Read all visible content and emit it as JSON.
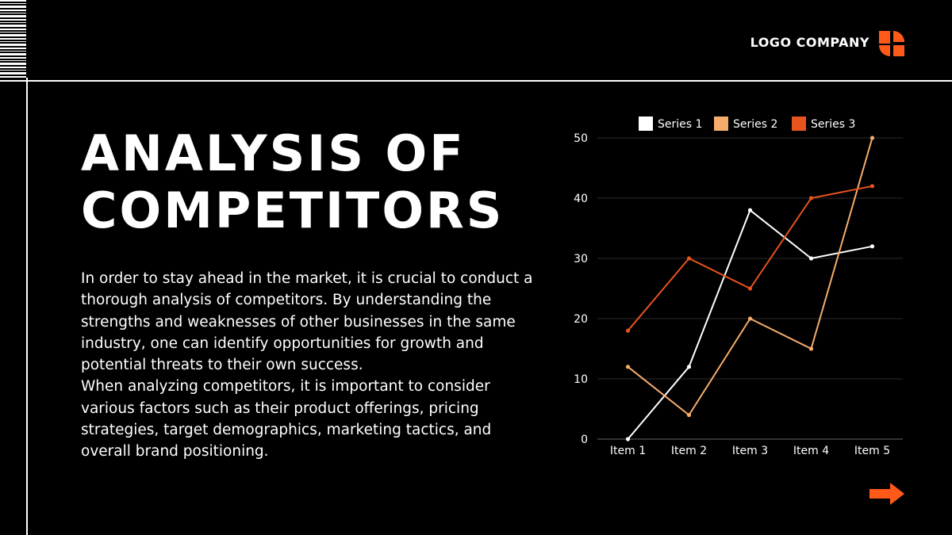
{
  "header": {
    "logo_text": "LOGO COMPANY",
    "logo_icon": "logo-mark-icon"
  },
  "slide": {
    "title_line1": "ANALYSIS OF",
    "title_line2": "COMPETITORS",
    "paragraph1": "In order to stay ahead in the market, it is crucial to conduct a thorough analysis of competitors. By understanding the strengths and weaknesses of other businesses in the same industry, one can identify opportunities for growth and potential threats to their own success.",
    "paragraph2": "When analyzing competitors, it is important to consider various factors such as their product offerings, pricing strategies, target demographics, marketing tactics, and overall brand positioning."
  },
  "nav": {
    "next_icon": "arrow-right-icon"
  },
  "colors": {
    "accent": "#ff5a1a",
    "background": "#000000",
    "text": "#ffffff"
  },
  "chart_data": {
    "type": "line",
    "categories": [
      "Item 1",
      "Item 2",
      "Item 3",
      "Item 4",
      "Item 5"
    ],
    "series": [
      {
        "name": "Series 1",
        "values": [
          0,
          12,
          38,
          30,
          32
        ],
        "color": "#ffffff"
      },
      {
        "name": "Series 2",
        "values": [
          12,
          4,
          20,
          15,
          50
        ],
        "color": "#f6ad6b"
      },
      {
        "name": "Series 3",
        "values": [
          18,
          30,
          25,
          40,
          42
        ],
        "color": "#e8541e"
      }
    ],
    "ylim": [
      0,
      50
    ],
    "yticks": [
      "0",
      "10",
      "20",
      "30",
      "40",
      "50"
    ],
    "grid": true,
    "legend": "top"
  }
}
